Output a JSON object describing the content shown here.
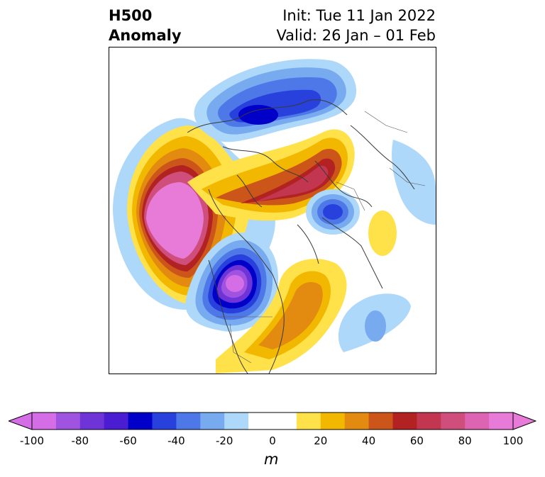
{
  "header": {
    "title_line1": "H500",
    "title_line2": "Anomaly",
    "init": "Init: Tue 11 Jan 2022",
    "valid": "Valid: 26 Jan – 01 Feb"
  },
  "colorbar": {
    "unit": "m",
    "min": -100,
    "max": 100,
    "step": 10,
    "extend": "both",
    "ticks": [
      "-100",
      "-80",
      "-60",
      "-40",
      "-20",
      "0",
      "20",
      "40",
      "60",
      "80",
      "100"
    ],
    "colors": [
      "#d56ee6",
      "#a052e0",
      "#6e34d8",
      "#4a1cd2",
      "#0000c8",
      "#2840dc",
      "#4e78e8",
      "#78aaf0",
      "#aed8fa",
      "#ffffff",
      "#ffffff",
      "#ffe24a",
      "#f2b800",
      "#e38a10",
      "#cc561a",
      "#b22222",
      "#c23650",
      "#d04e7c",
      "#dc64b2",
      "#e87ad8"
    ]
  },
  "map": {
    "projection": "north-polar-stereographic",
    "field": "500 hPa geopotential height anomaly"
  }
}
